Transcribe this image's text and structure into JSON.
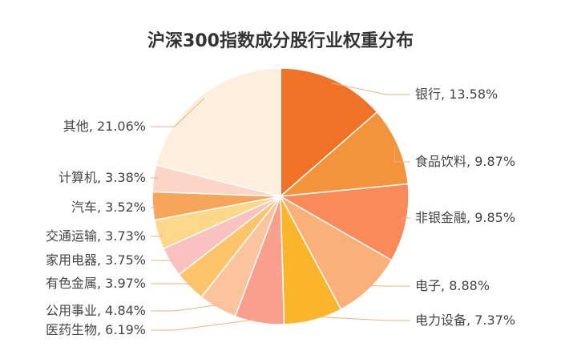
{
  "chart_data": {
    "type": "pie",
    "title": "沪深300指数成分股行业权重分布",
    "categories": [
      "银行",
      "食品饮料",
      "非银金融",
      "电子",
      "电力设备",
      "医药生物",
      "公用事业",
      "有色金属",
      "家用电器",
      "交通运输",
      "汽车",
      "计算机",
      "其他"
    ],
    "values": [
      13.58,
      9.87,
      9.85,
      8.88,
      7.37,
      6.19,
      4.84,
      3.97,
      3.75,
      3.73,
      3.52,
      3.38,
      21.06
    ],
    "value_labels": [
      ", 13.58%",
      ", 9.87%",
      ", 9.85%",
      ", 8.88%",
      ", 7.37%",
      ", 6.19%",
      ", 4.84%",
      ", 3.97%",
      ", 3.75%",
      ", 3.73%",
      ", 3.52%",
      ", 3.38%",
      ", 21.06%"
    ],
    "colors": [
      "#f07226",
      "#f3943c",
      "#fb8a5a",
      "#fbb07a",
      "#fbb52a",
      "#fa9e8e",
      "#fcc49c",
      "#fdc46a",
      "#fbc1c1",
      "#fdd78a",
      "#f8a55c",
      "#fbd5c8",
      "#fdeedd"
    ]
  }
}
